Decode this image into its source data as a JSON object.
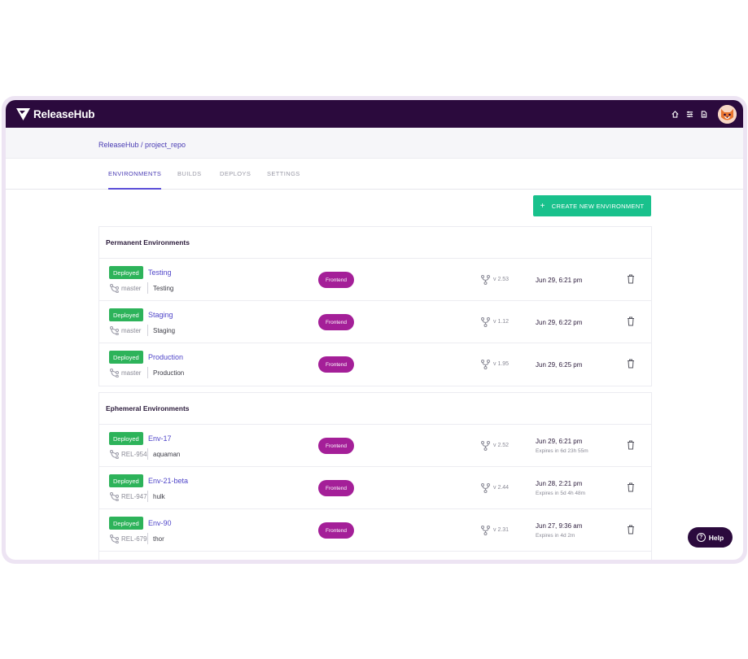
{
  "app": {
    "name": "ReleaseHub"
  },
  "breadcrumb": {
    "text": "ReleaseHub / project_repo"
  },
  "tabs": [
    {
      "label": "ENVIRONMENTS",
      "active": true
    },
    {
      "label": "BUILDS",
      "active": false
    },
    {
      "label": "DEPLOYS",
      "active": false
    },
    {
      "label": "SETTINGS",
      "active": false
    }
  ],
  "create_button": {
    "label": "CREATE NEW ENVIRONMENT",
    "icon": "plus-icon"
  },
  "permanent": {
    "title": "Permanent Environments",
    "rows": [
      {
        "status": "Deployed",
        "name": "Testing",
        "branch": "master",
        "target": "Testing",
        "tag": "Frontend",
        "version": "v 2.53",
        "date": "Jun 29, 6:21 pm"
      },
      {
        "status": "Deployed",
        "name": "Staging",
        "branch": "master",
        "target": "Staging",
        "tag": "Frontend",
        "version": "v 1.12",
        "date": "Jun 29, 6:22 pm"
      },
      {
        "status": "Deployed",
        "name": "Production",
        "branch": "master",
        "target": "Production",
        "tag": "Frontend",
        "version": "v 1.95",
        "date": "Jun 29, 6:25 pm"
      }
    ]
  },
  "ephemeral": {
    "title": "Ephemeral Environments",
    "rows": [
      {
        "status": "Deployed",
        "name": "Env-17",
        "branch": "REL-954",
        "target": "aquaman",
        "tag": "Frontend",
        "version": "v 2.52",
        "date": "Jun 29, 6:21 pm",
        "expires": "Expires in 6d 23h 55m"
      },
      {
        "status": "Deployed",
        "name": "Env-21-beta",
        "branch": "REL-947",
        "target": "hulk",
        "tag": "Frontend",
        "version": "v 2.44",
        "date": "Jun 28, 2:21 pm",
        "expires": "Expires in 5d 4h 48m"
      },
      {
        "status": "Deployed",
        "name": "Env-90",
        "branch": "REL-679",
        "target": "thor",
        "tag": "Frontend",
        "version": "v 2.31",
        "date": "Jun 27, 9:36 am",
        "expires": "Expires in 4d 2m"
      }
    ]
  },
  "help": {
    "label": "Help",
    "icon_glyph": "?"
  },
  "colors": {
    "header": "#2b0a3d",
    "accent": "#5b4ed8",
    "success": "#2db35a",
    "create": "#19c18c",
    "tag": "#a41f98"
  }
}
